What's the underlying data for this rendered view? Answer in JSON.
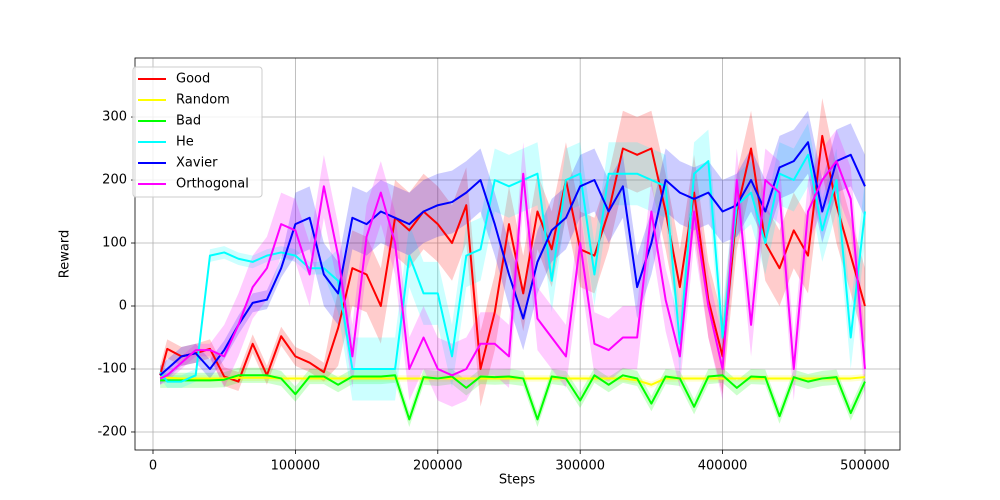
{
  "chart_data": {
    "type": "line",
    "x_label": "Steps",
    "y_label": "Reward",
    "x": [
      5000,
      10000,
      20000,
      30000,
      40000,
      50000,
      60000,
      70000,
      80000,
      90000,
      100000,
      110000,
      120000,
      130000,
      140000,
      150000,
      160000,
      170000,
      180000,
      190000,
      200000,
      210000,
      220000,
      230000,
      240000,
      250000,
      260000,
      270000,
      280000,
      290000,
      300000,
      310000,
      320000,
      330000,
      340000,
      350000,
      360000,
      370000,
      380000,
      390000,
      400000,
      410000,
      420000,
      430000,
      440000,
      450000,
      460000,
      470000,
      480000,
      490000,
      500000
    ],
    "xlim": [
      -12640,
      524600
    ],
    "ylim": [
      -228.6,
      393.7
    ],
    "xticks": [
      0,
      100000,
      200000,
      300000,
      400000,
      500000
    ],
    "yticks": [
      -200,
      -100,
      0,
      100,
      200,
      300
    ],
    "grid": true,
    "legend": "upper left",
    "series": [
      {
        "name": "Good",
        "color": "#ff0000",
        "values": [
          -110,
          -68,
          -80,
          -75,
          -68,
          -112,
          -120,
          -60,
          -110,
          -48,
          -80,
          -90,
          -105,
          -35,
          60,
          50,
          0,
          140,
          120,
          150,
          130,
          100,
          160,
          -100,
          -10,
          130,
          20,
          150,
          90,
          200,
          90,
          80,
          150,
          250,
          240,
          250,
          150,
          30,
          180,
          10,
          -80,
          150,
          250,
          100,
          60,
          120,
          80,
          270,
          160,
          80,
          0
        ],
        "lower": [
          -125,
          -83,
          -95,
          -90,
          -83,
          -127,
          -135,
          -75,
          -125,
          -63,
          -95,
          -105,
          -120,
          -95,
          0,
          -10,
          -60,
          80,
          60,
          90,
          70,
          40,
          100,
          -160,
          -70,
          70,
          -40,
          90,
          30,
          140,
          30,
          20,
          90,
          190,
          180,
          190,
          90,
          -30,
          120,
          -50,
          -140,
          90,
          190,
          40,
          0,
          60,
          20,
          210,
          100,
          20,
          -60
        ],
        "upper": [
          -95,
          -53,
          -65,
          -60,
          -53,
          -97,
          -105,
          -45,
          -95,
          -33,
          -65,
          -75,
          -90,
          25,
          120,
          110,
          60,
          200,
          180,
          210,
          190,
          160,
          220,
          -40,
          50,
          190,
          80,
          210,
          150,
          260,
          150,
          140,
          210,
          310,
          300,
          310,
          210,
          90,
          240,
          70,
          -20,
          210,
          310,
          160,
          120,
          180,
          140,
          330,
          220,
          140,
          60
        ]
      },
      {
        "name": "Random",
        "color": "#ffff00",
        "values": [
          -113,
          -114,
          -115,
          -115,
          -115,
          -115,
          -114,
          -114,
          -114,
          -115,
          -115,
          -115,
          -115,
          -115,
          -115,
          -115,
          -115,
          -115,
          -115,
          -115,
          -115,
          -115,
          -115,
          -115,
          -115,
          -115,
          -115,
          -115,
          -115,
          -115,
          -115,
          -115,
          -115,
          -115,
          -118,
          -125,
          -115,
          -115,
          -115,
          -115,
          -115,
          -115,
          -115,
          -115,
          -115,
          -115,
          -115,
          -115,
          -115,
          -115,
          -113
        ],
        "lower": [
          -118,
          -119,
          -120,
          -120,
          -120,
          -120,
          -119,
          -119,
          -119,
          -120,
          -120,
          -120,
          -120,
          -120,
          -120,
          -120,
          -120,
          -120,
          -120,
          -120,
          -120,
          -120,
          -120,
          -120,
          -120,
          -120,
          -120,
          -120,
          -120,
          -120,
          -120,
          -120,
          -120,
          -120,
          -123,
          -130,
          -120,
          -120,
          -120,
          -120,
          -120,
          -120,
          -120,
          -120,
          -120,
          -120,
          -120,
          -120,
          -120,
          -120,
          -118
        ],
        "upper": [
          -108,
          -109,
          -110,
          -110,
          -110,
          -110,
          -109,
          -109,
          -109,
          -110,
          -110,
          -110,
          -110,
          -110,
          -110,
          -110,
          -110,
          -110,
          -110,
          -110,
          -110,
          -110,
          -110,
          -110,
          -110,
          -110,
          -110,
          -110,
          -110,
          -110,
          -110,
          -110,
          -110,
          -110,
          -113,
          -120,
          -110,
          -110,
          -110,
          -110,
          -110,
          -110,
          -110,
          -110,
          -110,
          -110,
          -110,
          -110,
          -110,
          -110,
          -108
        ]
      },
      {
        "name": "Bad",
        "color": "#00ff00",
        "values": [
          -118,
          -118,
          -118,
          -118,
          -118,
          -117,
          -110,
          -110,
          -110,
          -115,
          -140,
          -112,
          -112,
          -125,
          -112,
          -112,
          -112,
          -110,
          -180,
          -113,
          -115,
          -112,
          -130,
          -112,
          -113,
          -112,
          -115,
          -180,
          -112,
          -115,
          -150,
          -110,
          -125,
          -110,
          -115,
          -155,
          -112,
          -115,
          -160,
          -112,
          -110,
          -130,
          -112,
          -113,
          -175,
          -113,
          -120,
          -115,
          -113,
          -170,
          -120
        ],
        "lower": [
          -130,
          -130,
          -130,
          -130,
          -130,
          -129,
          -122,
          -122,
          -122,
          -127,
          -152,
          -124,
          -124,
          -137,
          -124,
          -124,
          -124,
          -122,
          -192,
          -125,
          -127,
          -124,
          -142,
          -124,
          -125,
          -124,
          -127,
          -192,
          -124,
          -127,
          -162,
          -122,
          -137,
          -122,
          -127,
          -167,
          -124,
          -127,
          -172,
          -124,
          -122,
          -142,
          -124,
          -125,
          -187,
          -125,
          -132,
          -127,
          -125,
          -182,
          -132
        ],
        "upper": [
          -106,
          -106,
          -106,
          -106,
          -106,
          -105,
          -98,
          -98,
          -98,
          -103,
          -128,
          -100,
          -100,
          -113,
          -100,
          -100,
          -100,
          -98,
          -168,
          -101,
          -103,
          -100,
          -118,
          -100,
          -101,
          -100,
          -103,
          -168,
          -100,
          -103,
          -138,
          -98,
          -113,
          -98,
          -103,
          -143,
          -100,
          -103,
          -148,
          -100,
          -98,
          -118,
          -100,
          -101,
          -163,
          -101,
          -108,
          -103,
          -101,
          -158,
          -108
        ]
      },
      {
        "name": "He",
        "color": "#00ffff",
        "values": [
          -105,
          -120,
          -120,
          -110,
          80,
          85,
          75,
          70,
          80,
          85,
          80,
          60,
          60,
          40,
          -100,
          -100,
          -100,
          -100,
          80,
          20,
          20,
          -80,
          80,
          90,
          200,
          190,
          200,
          210,
          40,
          200,
          210,
          50,
          210,
          210,
          210,
          200,
          190,
          -60,
          210,
          230,
          -50,
          160,
          180,
          100,
          210,
          200,
          240,
          120,
          200,
          -50,
          150
        ],
        "lower": [
          -115,
          -130,
          -130,
          -120,
          70,
          75,
          65,
          60,
          70,
          75,
          70,
          50,
          50,
          -10,
          -150,
          -150,
          -150,
          -150,
          30,
          -30,
          -30,
          -130,
          30,
          40,
          150,
          140,
          150,
          160,
          -10,
          150,
          160,
          0,
          160,
          160,
          160,
          150,
          140,
          -110,
          160,
          180,
          -100,
          110,
          130,
          50,
          160,
          150,
          190,
          70,
          150,
          -100,
          100
        ],
        "upper": [
          -95,
          -110,
          -110,
          -100,
          90,
          95,
          85,
          80,
          90,
          95,
          90,
          70,
          70,
          90,
          -50,
          -50,
          -50,
          -50,
          130,
          70,
          70,
          -30,
          130,
          140,
          250,
          240,
          250,
          260,
          90,
          250,
          260,
          100,
          260,
          260,
          260,
          250,
          240,
          -10,
          260,
          280,
          0,
          210,
          230,
          150,
          260,
          250,
          290,
          170,
          250,
          0,
          200
        ]
      },
      {
        "name": "Xavier",
        "color": "#0000ff",
        "values": [
          -110,
          -100,
          -80,
          -75,
          -100,
          -70,
          -30,
          5,
          10,
          60,
          130,
          140,
          50,
          20,
          140,
          130,
          150,
          140,
          130,
          150,
          160,
          165,
          180,
          200,
          130,
          50,
          -20,
          70,
          120,
          140,
          190,
          200,
          150,
          190,
          30,
          100,
          200,
          180,
          170,
          180,
          150,
          160,
          200,
          150,
          220,
          230,
          260,
          150,
          230,
          240,
          190
        ],
        "lower": [
          -125,
          -115,
          -95,
          -90,
          -115,
          -85,
          -45,
          -10,
          -5,
          45,
          80,
          90,
          0,
          -30,
          90,
          80,
          100,
          90,
          80,
          100,
          110,
          115,
          130,
          150,
          80,
          0,
          -70,
          20,
          70,
          90,
          140,
          150,
          100,
          140,
          -20,
          50,
          150,
          130,
          120,
          130,
          100,
          110,
          150,
          100,
          170,
          180,
          210,
          100,
          180,
          190,
          140
        ],
        "upper": [
          -95,
          -85,
          -65,
          -60,
          -85,
          -55,
          -15,
          20,
          25,
          75,
          180,
          190,
          100,
          70,
          190,
          180,
          200,
          190,
          180,
          200,
          210,
          215,
          230,
          250,
          180,
          100,
          30,
          120,
          170,
          190,
          240,
          250,
          200,
          240,
          80,
          150,
          250,
          230,
          220,
          230,
          200,
          210,
          250,
          200,
          270,
          280,
          310,
          200,
          280,
          290,
          240
        ]
      },
      {
        "name": "Orthogonal",
        "color": "#ff00ff",
        "values": [
          -115,
          -110,
          -90,
          -70,
          -70,
          -80,
          -30,
          30,
          60,
          130,
          120,
          50,
          190,
          80,
          -80,
          110,
          180,
          100,
          -100,
          -50,
          -100,
          -110,
          -100,
          -60,
          -60,
          -80,
          210,
          -20,
          -50,
          -80,
          100,
          -60,
          -70,
          -50,
          -50,
          150,
          10,
          -80,
          150,
          0,
          -100,
          200,
          -30,
          200,
          180,
          -100,
          150,
          200,
          230,
          170,
          -100
        ],
        "lower": [
          -125,
          -120,
          -100,
          -80,
          -80,
          -130,
          -80,
          -20,
          10,
          80,
          70,
          0,
          140,
          30,
          -130,
          60,
          130,
          50,
          -150,
          -100,
          -150,
          -160,
          -150,
          -110,
          -110,
          -130,
          160,
          -70,
          -100,
          -130,
          50,
          -110,
          -120,
          -100,
          -100,
          100,
          -40,
          -130,
          100,
          -50,
          -150,
          150,
          -80,
          150,
          130,
          -150,
          100,
          150,
          180,
          120,
          -150
        ],
        "upper": [
          -105,
          -100,
          -80,
          -60,
          -60,
          -30,
          20,
          80,
          110,
          180,
          170,
          100,
          240,
          130,
          -30,
          160,
          230,
          150,
          -50,
          0,
          -50,
          -60,
          -50,
          -10,
          -10,
          -30,
          260,
          30,
          0,
          -30,
          150,
          -10,
          -20,
          0,
          0,
          200,
          60,
          -30,
          200,
          50,
          -50,
          250,
          20,
          250,
          230,
          -50,
          200,
          250,
          280,
          220,
          -50
        ]
      }
    ]
  }
}
